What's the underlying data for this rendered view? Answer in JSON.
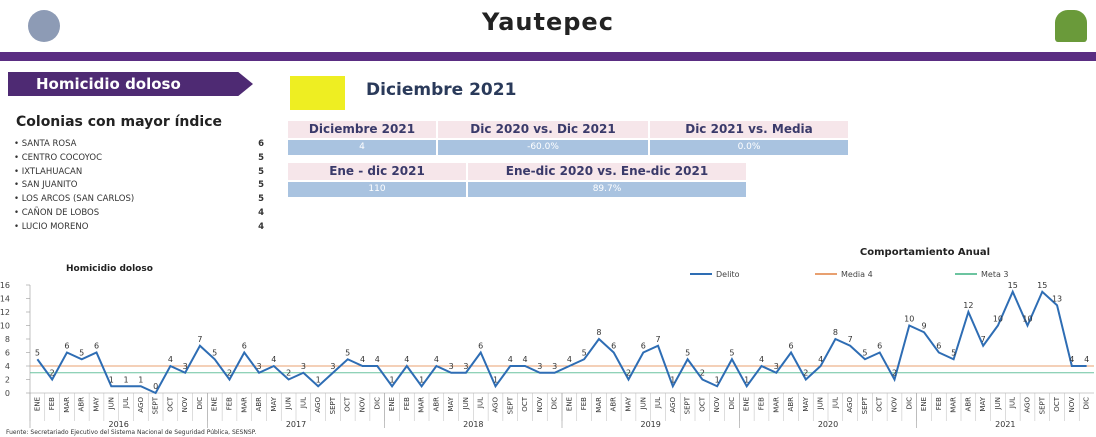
{
  "header": {
    "title": "Yautepec"
  },
  "panel": {
    "section": "Homicidio doloso",
    "period": "Diciembre 2021"
  },
  "colonias": {
    "title": "Colonias con mayor índice",
    "items": [
      {
        "name": "SANTA ROSA",
        "count": 6
      },
      {
        "name": "CENTRO COCOYOC",
        "count": 5
      },
      {
        "name": "IXTLAHUACAN",
        "count": 5
      },
      {
        "name": "SAN JUANITO",
        "count": 5
      },
      {
        "name": "LOS ARCOS (SAN CARLOS)",
        "count": 5
      },
      {
        "name": "CAÑON DE LOBOS",
        "count": 4
      },
      {
        "name": "LUCIO MORENO",
        "count": 4
      }
    ]
  },
  "table": {
    "rows": [
      [
        "Diciembre 2021",
        "Dic 2020 vs. Dic 2021",
        "Dic 2021 vs. Media"
      ],
      [
        "4",
        "-60.0%",
        "0.0%"
      ],
      [
        "Ene - dic 2021",
        "Ene-dic 2020 vs. Ene-dic 2021"
      ],
      [
        "110",
        "89.7%"
      ]
    ]
  },
  "chart_data": {
    "type": "line",
    "title": "Homicidio doloso",
    "subtitle": "Comportamiento Anual",
    "categories": [
      "ENE",
      "FEB",
      "MAR",
      "ABR",
      "MAY",
      "JUN",
      "JUL",
      "AGO",
      "SEPT",
      "OCT",
      "NOV",
      "DIC",
      "ENE",
      "FEB",
      "MAR",
      "ABR",
      "MAY",
      "JUN",
      "JUL",
      "AGO",
      "SEPT",
      "OCT",
      "NOV",
      "DIC",
      "ENE",
      "FEB",
      "MAR",
      "ABR",
      "MAY",
      "JUN",
      "JUL",
      "AGO",
      "SEPT",
      "OCT",
      "NOV",
      "DIC",
      "ENE",
      "FEB",
      "MAR",
      "ABR",
      "MAY",
      "JUN",
      "JUL",
      "AGO",
      "SEPT",
      "OCT",
      "NOV",
      "DIC",
      "ENE",
      "FEB",
      "MAR",
      "ABR",
      "MAY",
      "JUN",
      "JUL",
      "AGO",
      "SEPT",
      "OCT",
      "NOV",
      "DIC",
      "ENE",
      "FEB",
      "MAR",
      "ABR",
      "MAY",
      "JUN",
      "JUL",
      "AGO",
      "SEPT",
      "OCT",
      "NOV",
      "DIC"
    ],
    "year_groups": [
      "2016",
      "2017",
      "2018",
      "2019",
      "2020",
      "2021"
    ],
    "series": [
      {
        "name": "Delito",
        "color": "#2e6db4",
        "values": [
          5,
          2,
          6,
          5,
          6,
          1,
          1,
          1,
          0,
          4,
          3,
          7,
          5,
          2,
          6,
          3,
          4,
          2,
          3,
          1,
          3,
          5,
          4,
          4,
          1,
          4,
          1,
          4,
          3,
          3,
          6,
          1,
          4,
          4,
          3,
          3,
          4,
          5,
          8,
          6,
          2,
          6,
          7,
          1,
          5,
          2,
          1,
          5,
          1,
          4,
          3,
          6,
          2,
          4,
          8,
          7,
          5,
          6,
          2,
          10,
          9,
          6,
          5,
          12,
          7,
          10,
          15,
          10,
          15,
          13,
          4,
          4
        ]
      }
    ],
    "reference_lines": [
      {
        "name": "Media 4",
        "value": 4,
        "color": "#e8a070"
      },
      {
        "name": "Meta 3",
        "value": 3,
        "color": "#6cc4a0"
      }
    ],
    "ylim": [
      0,
      16
    ],
    "yticks": [
      0,
      2,
      4,
      6,
      8,
      10,
      12,
      14,
      16
    ]
  },
  "source": "Fuente: Secretariado Ejecutivo del Sistema Nacional de Seguridad Pública, SESNSP."
}
